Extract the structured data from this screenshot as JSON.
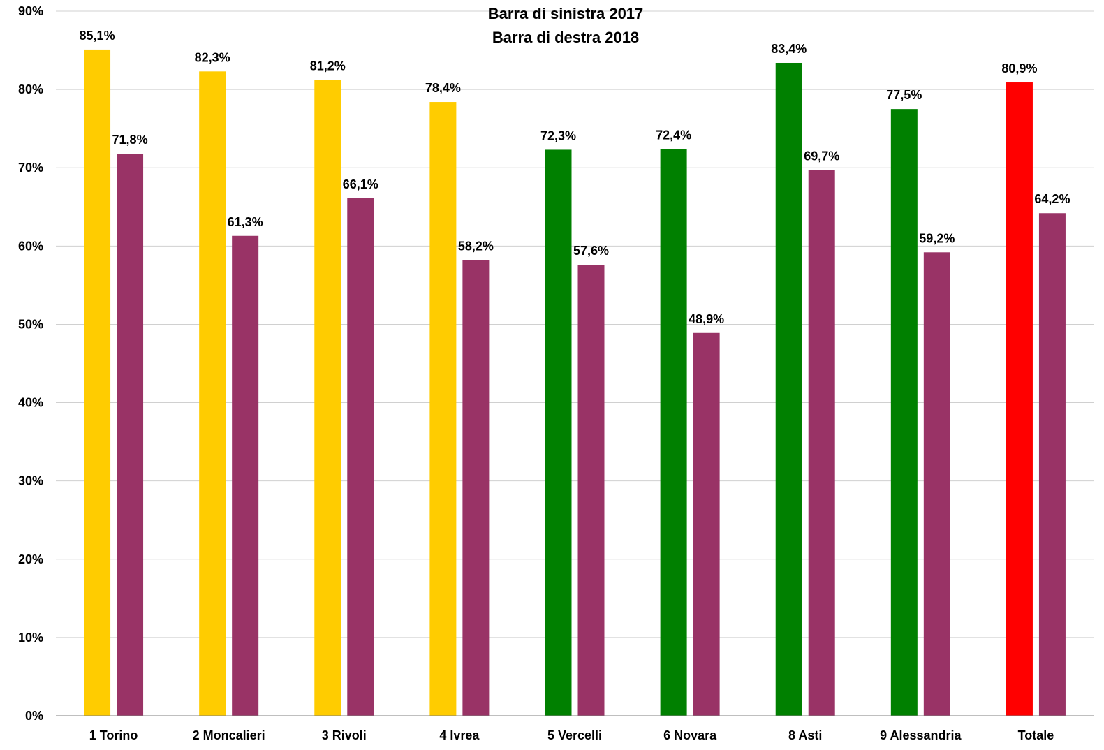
{
  "chart_data": {
    "type": "bar",
    "title_lines": [
      "Barra di sinistra  2017",
      "Barra di destra  2018"
    ],
    "categories": [
      "1 Torino",
      "2 Moncalieri",
      "3 Rivoli",
      "4 Ivrea",
      "5 Vercelli",
      "6 Novara",
      "8 Asti",
      "9 Alessandria",
      "Totale"
    ],
    "series": [
      {
        "values": [
          85.1,
          82.3,
          81.2,
          78.4,
          72.3,
          72.4,
          83.4,
          77.5,
          80.9
        ],
        "labels": [
          "85,1%",
          "82,3%",
          "81,2%",
          "78,4%",
          "72,3%",
          "72,4%",
          "83,4%",
          "77,5%",
          "80,9%"
        ],
        "colors": [
          "#ffcc00",
          "#ffcc00",
          "#ffcc00",
          "#ffcc00",
          "#008000",
          "#008000",
          "#008000",
          "#008000",
          "#ff0000"
        ]
      },
      {
        "values": [
          71.8,
          61.3,
          66.1,
          58.2,
          57.6,
          48.9,
          69.7,
          59.2,
          64.2
        ],
        "labels": [
          "71,8%",
          "61,3%",
          "66,1%",
          "58,2%",
          "57,6%",
          "48,9%",
          "69,7%",
          "59,2%",
          "64,2%"
        ],
        "colors": [
          "#993366",
          "#993366",
          "#993366",
          "#993366",
          "#993366",
          "#993366",
          "#993366",
          "#993366",
          "#993366"
        ]
      }
    ],
    "ylim": [
      0,
      90
    ],
    "yticks": [
      "0%",
      "10%",
      "20%",
      "30%",
      "40%",
      "50%",
      "60%",
      "70%",
      "80%",
      "90%"
    ],
    "xlabel": "",
    "ylabel": "",
    "grid": true,
    "legend": "none"
  }
}
